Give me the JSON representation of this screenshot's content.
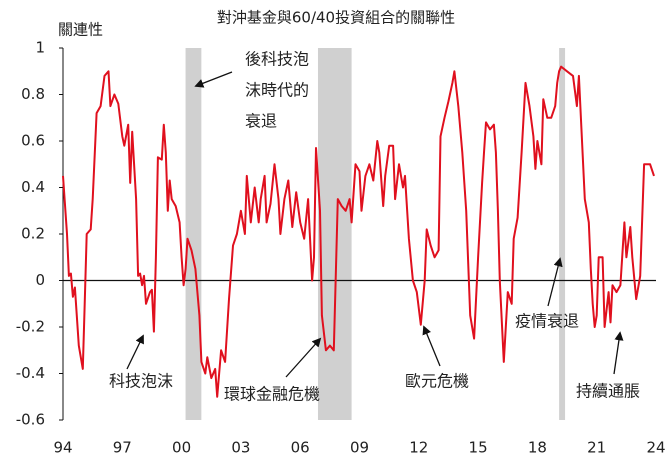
{
  "chart_data": {
    "type": "line",
    "title": "對沖基金與60/40投資組合的關聯性",
    "y_label": "關連性",
    "xlim": [
      1994,
      2024
    ],
    "xticks": [
      {
        "value": 1994,
        "label": "94"
      },
      {
        "value": 1997,
        "label": "97"
      },
      {
        "value": 2000,
        "label": "00"
      },
      {
        "value": 2003,
        "label": "03"
      },
      {
        "value": 2006,
        "label": "06"
      },
      {
        "value": 2009,
        "label": "09"
      },
      {
        "value": 2012,
        "label": "12"
      },
      {
        "value": 2015,
        "label": "15"
      },
      {
        "value": 2018,
        "label": "18"
      },
      {
        "value": 2021,
        "label": "21"
      },
      {
        "value": 2024,
        "label": "24"
      }
    ],
    "ylim": [
      -0.6,
      1
    ],
    "yticks": [
      1,
      0.8,
      0.6,
      0.4,
      0.2,
      0,
      -0.2,
      -0.4,
      -0.6
    ],
    "zero_line": true,
    "shaded_ranges": [
      [
        2000.2,
        2001.0
      ],
      [
        2006.9,
        2008.6
      ],
      [
        2019.1,
        2019.4
      ]
    ],
    "shade_color": "#d0d0d0",
    "x": [
      1994.0,
      1994.2,
      1994.3,
      1994.4,
      1994.5,
      1994.6,
      1994.8,
      1995.0,
      1995.1,
      1995.2,
      1995.4,
      1995.5,
      1995.7,
      1995.9,
      1996.1,
      1996.3,
      1996.4,
      1996.6,
      1996.8,
      1997.0,
      1997.1,
      1997.3,
      1997.4,
      1997.5,
      1997.7,
      1997.8,
      1997.9,
      1998.0,
      1998.1,
      1998.2,
      1998.4,
      1998.5,
      1998.6,
      1998.7,
      1998.8,
      1999.0,
      1999.1,
      1999.2,
      1999.3,
      1999.4,
      1999.5,
      1999.7,
      1999.9,
      2000.0,
      2000.1,
      2000.2,
      2000.3,
      2000.5,
      2000.7,
      2000.9,
      2001.0,
      2001.2,
      2001.3,
      2001.5,
      2001.7,
      2001.8,
      2002.0,
      2002.2,
      2002.4,
      2002.6,
      2002.8,
      2003.0,
      2003.2,
      2003.3,
      2003.5,
      2003.7,
      2003.9,
      2004.0,
      2004.2,
      2004.3,
      2004.5,
      2004.7,
      2004.9,
      2005.0,
      2005.2,
      2005.4,
      2005.6,
      2005.8,
      2006.0,
      2006.2,
      2006.4,
      2006.6,
      2006.7,
      2006.8,
      2007.0,
      2007.1,
      2007.3,
      2007.5,
      2007.7,
      2007.9,
      2008.1,
      2008.3,
      2008.5,
      2008.6,
      2008.8,
      2009.0,
      2009.1,
      2009.3,
      2009.5,
      2009.7,
      2009.9,
      2010.0,
      2010.2,
      2010.3,
      2010.5,
      2010.7,
      2010.8,
      2011.0,
      2011.2,
      2011.3,
      2011.5,
      2011.7,
      2011.9,
      2012.1,
      2012.3,
      2012.4,
      2012.6,
      2012.8,
      2013.0,
      2013.1,
      2013.3,
      2013.5,
      2013.7,
      2013.8,
      2014.0,
      2014.2,
      2014.4,
      2014.6,
      2014.8,
      2015.0,
      2015.2,
      2015.3,
      2015.4,
      2015.6,
      2015.8,
      2015.9,
      2016.0,
      2016.1,
      2016.3,
      2016.5,
      2016.7,
      2016.8,
      2017.0,
      2017.2,
      2017.4,
      2017.6,
      2017.8,
      2017.9,
      2018.0,
      2018.2,
      2018.3,
      2018.5,
      2018.7,
      2018.9,
      2019.0,
      2019.1,
      2019.2,
      2019.5,
      2019.8,
      2020.0,
      2020.1,
      2020.2,
      2020.4,
      2020.6,
      2020.7,
      2020.8,
      2020.9,
      2021.0,
      2021.1,
      2021.3,
      2021.4,
      2021.6,
      2021.7,
      2021.8,
      2022.0,
      2022.2,
      2022.4,
      2022.5,
      2022.7,
      2022.8,
      2023.0,
      2023.2,
      2023.4,
      2023.7,
      2023.9
    ],
    "series": [
      {
        "color": "#e0101e",
        "values": [
          0.45,
          0.2,
          0.02,
          0.03,
          -0.07,
          -0.03,
          -0.28,
          -0.38,
          -0.1,
          0.2,
          0.22,
          0.35,
          0.72,
          0.75,
          0.88,
          0.9,
          0.75,
          0.8,
          0.76,
          0.62,
          0.58,
          0.67,
          0.42,
          0.64,
          0.35,
          0.02,
          0.03,
          -0.02,
          0.02,
          -0.1,
          -0.05,
          -0.04,
          -0.22,
          0.1,
          0.53,
          0.52,
          0.67,
          0.55,
          0.3,
          0.43,
          0.35,
          0.32,
          0.25,
          0.1,
          -0.02,
          0.05,
          0.18,
          0.13,
          0.05,
          -0.15,
          -0.35,
          -0.4,
          -0.33,
          -0.42,
          -0.38,
          -0.5,
          -0.3,
          -0.35,
          -0.08,
          0.15,
          0.2,
          0.3,
          0.2,
          0.45,
          0.25,
          0.4,
          0.25,
          0.35,
          0.45,
          0.25,
          0.33,
          0.5,
          0.35,
          0.2,
          0.35,
          0.43,
          0.23,
          0.38,
          0.25,
          0.18,
          0.35,
          0.0,
          0.1,
          0.57,
          0.3,
          -0.15,
          -0.3,
          -0.28,
          -0.3,
          0.35,
          0.32,
          0.3,
          0.35,
          0.25,
          0.5,
          0.47,
          0.3,
          0.45,
          0.5,
          0.43,
          0.6,
          0.55,
          0.32,
          0.45,
          0.58,
          0.58,
          0.35,
          0.5,
          0.4,
          0.45,
          0.18,
          0.0,
          -0.05,
          -0.19,
          0.0,
          0.22,
          0.15,
          0.1,
          0.13,
          0.62,
          0.7,
          0.77,
          0.85,
          0.9,
          0.75,
          0.55,
          0.3,
          -0.15,
          -0.25,
          0.1,
          0.42,
          0.55,
          0.68,
          0.65,
          0.67,
          0.55,
          0.3,
          0.0,
          -0.35,
          -0.05,
          -0.1,
          0.18,
          0.27,
          0.55,
          0.85,
          0.75,
          0.62,
          0.48,
          0.6,
          0.5,
          0.78,
          0.7,
          0.7,
          0.75,
          0.85,
          0.9,
          0.92,
          0.9,
          0.88,
          0.75,
          0.88,
          0.7,
          0.35,
          0.25,
          0.05,
          -0.1,
          -0.2,
          -0.15,
          0.1,
          0.1,
          -0.2,
          -0.05,
          -0.18,
          -0.02,
          -0.05,
          -0.02,
          0.25,
          0.1,
          0.23,
          0.1,
          -0.08,
          0.02,
          0.5,
          0.5,
          0.45
        ]
      }
    ],
    "annotations": [
      {
        "lines": [
          "後科技泡",
          "沫時代的",
          "衰退"
        ]
      },
      {
        "lines": [
          "科技泡沫"
        ]
      },
      {
        "lines": [
          "環球金融危機"
        ]
      },
      {
        "lines": [
          "歐元危機"
        ]
      },
      {
        "lines": [
          "疫情衰退"
        ]
      },
      {
        "lines": [
          "持續通脹"
        ]
      }
    ]
  }
}
